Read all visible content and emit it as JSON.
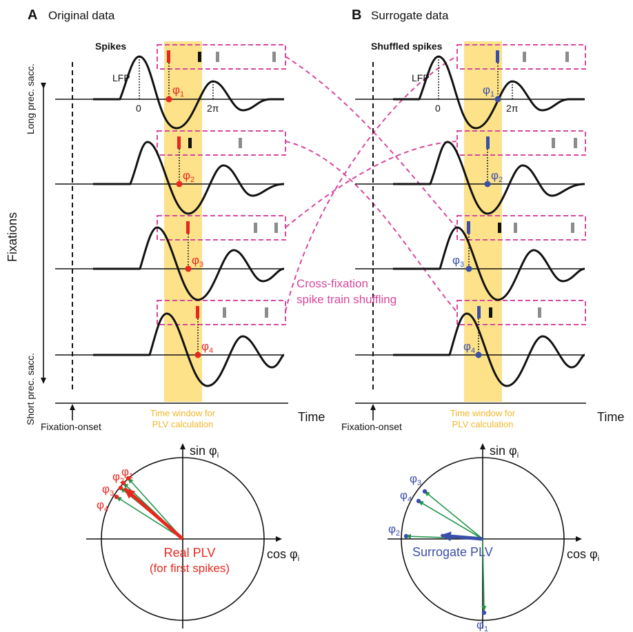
{
  "panels": {
    "a": {
      "letter": "A",
      "title": "Original data",
      "spikes_label": "Spikes"
    },
    "b": {
      "letter": "B",
      "title": "Surrogate data",
      "spikes_label": "Shuffled spikes"
    }
  },
  "labels": {
    "lfp": "LFP",
    "zero": "0",
    "two_pi": "2π",
    "y_axis": "Fixations",
    "long_sacc": "Long prec. sacc.",
    "short_sacc": "Short prec. sacc.",
    "time": "Time",
    "fixation_onset": "Fixation-onset",
    "window_line1": "Time window for",
    "window_line2": "PLV calculation",
    "shuffle_line1": "Cross-fixation",
    "shuffle_line2": "spike train shuffling",
    "sin": "sin φ",
    "cos": "cos φ",
    "sub_i": "i"
  },
  "phases": {
    "phi": "φ",
    "subs": [
      "1",
      "2",
      "3",
      "4"
    ]
  },
  "polar": {
    "real_line1": "Real PLV",
    "real_line2": "(for first spikes)",
    "surrogate": "Surrogate PLV"
  },
  "colors": {
    "red": "#e8281f",
    "blue": "#3a4fa8",
    "pink": "#d6479d",
    "yellow": "#fde28a",
    "yellow_text": "#f0b62a",
    "green": "#1f9447"
  }
}
